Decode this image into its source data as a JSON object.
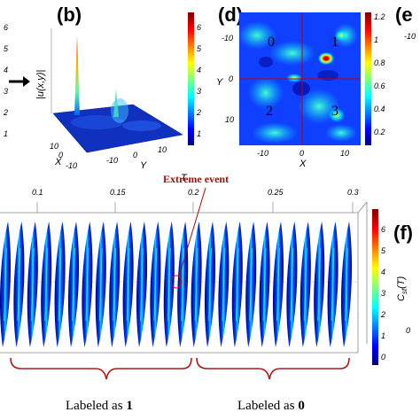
{
  "panels": {
    "b": "(b)",
    "d": "(d)",
    "e": "(e",
    "f": "(f)"
  },
  "left_edge_ticks": [
    "6",
    "5",
    "4",
    "3",
    "2",
    "1"
  ],
  "panel_b": {
    "zlabel": "|u(x,y)|",
    "xlabel": "X",
    "ylabel": "Y",
    "x_ticks": [
      "10",
      "0",
      "-10"
    ],
    "y_ticks": [
      "-10",
      "0",
      "10"
    ],
    "colorbar_ticks": [
      "6",
      "5",
      "4",
      "3",
      "2",
      "1"
    ]
  },
  "panel_d": {
    "xlabel": "X",
    "ylabel": "Y",
    "x_ticks": [
      "-10",
      "0",
      "10"
    ],
    "y_ticks": [
      "-10",
      "0",
      "10"
    ],
    "quadrants": [
      "0",
      "1",
      "2",
      "3"
    ],
    "colorbar_ticks": [
      "1.2",
      "1",
      "0.8",
      "0.6",
      "0.4",
      "0.2"
    ],
    "edge_tick": "-10"
  },
  "panel_c": {
    "xlabel": "T",
    "t_ticks": [
      "0.1",
      "0.15",
      "0.2",
      "0.25",
      "0.3"
    ],
    "annotation": "Extreme event",
    "colorbar_ticks": [
      "6",
      "5",
      "4",
      "3",
      "2",
      "1",
      "0"
    ],
    "colorbar_label": "C",
    "colorbar_label_sub": "st",
    "colorbar_label_arg": "(T)",
    "label_one_prefix": "Labeled as ",
    "label_one_value": "1",
    "label_zero_prefix": "Labeled as ",
    "label_zero_value": "0"
  },
  "colors": {
    "jet_dark": "#00007f",
    "jet_blue": "#0000ff",
    "jet_cyan": "#00ffff",
    "jet_yellow": "#ffff00",
    "jet_red": "#ff0000",
    "jet_darkred": "#7f0000",
    "annotation": "#a01010",
    "brace": "#b01818"
  }
}
